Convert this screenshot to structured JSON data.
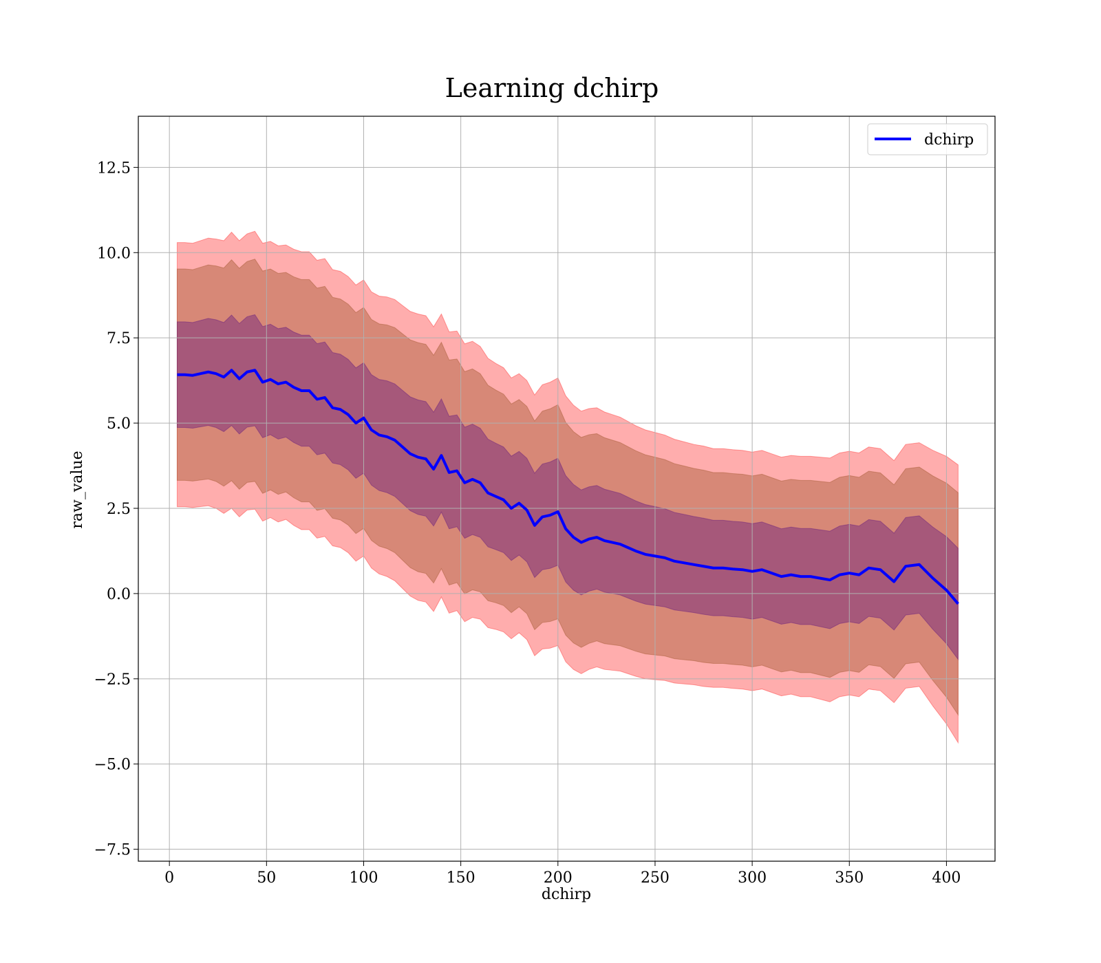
{
  "chart_data": {
    "type": "line",
    "title": "Learning dchirp",
    "xlabel": "dchirp",
    "ylabel": "raw_value",
    "xlim": [
      -16,
      425
    ],
    "ylim": [
      -7.85,
      14.0
    ],
    "grid": true,
    "legend_position": "top-right",
    "xticks": [
      0,
      50,
      100,
      150,
      200,
      250,
      300,
      350,
      400
    ],
    "xtick_labels": [
      "0",
      "50",
      "100",
      "150",
      "200",
      "250",
      "300",
      "350",
      "400"
    ],
    "yticks": [
      -7.5,
      -5.0,
      -2.5,
      0.0,
      2.5,
      5.0,
      7.5,
      10.0,
      12.5
    ],
    "ytick_labels": [
      "−7.5",
      "−5.0",
      "−2.5",
      "0.0",
      "2.5",
      "5.0",
      "7.5",
      "10.0",
      "12.5"
    ],
    "colors": {
      "line": "#0000ff",
      "outer_band": "#ff0000",
      "middle_band": "#8b4513",
      "inner_band": "#4b0082"
    },
    "band_multipliers": [
      1.0,
      2.0,
      2.5
    ],
    "series": [
      {
        "name": "dchirp",
        "x": [
          4,
          8,
          12,
          16,
          20,
          24,
          28,
          32,
          36,
          40,
          44,
          48,
          52,
          56,
          60,
          64,
          68,
          72,
          76,
          80,
          84,
          88,
          92,
          96,
          100,
          104,
          108,
          112,
          116,
          120,
          124,
          128,
          132,
          136,
          140,
          144,
          148,
          152,
          156,
          160,
          164,
          168,
          172,
          176,
          180,
          184,
          188,
          192,
          196,
          200,
          204,
          208,
          212,
          216,
          220,
          224,
          228,
          232,
          236,
          240,
          245,
          250,
          255,
          260,
          265,
          270,
          275,
          280,
          285,
          290,
          295,
          300,
          305,
          310,
          315,
          320,
          325,
          330,
          335,
          340,
          345,
          350,
          355,
          360,
          366,
          373,
          379,
          386,
          393,
          400,
          406
        ],
        "values": [
          6.42,
          6.42,
          6.4,
          6.45,
          6.5,
          6.45,
          6.35,
          6.55,
          6.3,
          6.5,
          6.55,
          6.2,
          6.28,
          6.15,
          6.2,
          6.05,
          5.95,
          5.95,
          5.7,
          5.75,
          5.45,
          5.4,
          5.25,
          5.0,
          5.15,
          4.8,
          4.65,
          4.6,
          4.5,
          4.3,
          4.1,
          4.0,
          3.95,
          3.65,
          4.05,
          3.55,
          3.6,
          3.25,
          3.35,
          3.25,
          2.95,
          2.85,
          2.75,
          2.5,
          2.65,
          2.45,
          2.0,
          2.25,
          2.3,
          2.4,
          1.9,
          1.65,
          1.5,
          1.6,
          1.65,
          1.55,
          1.5,
          1.45,
          1.35,
          1.25,
          1.15,
          1.1,
          1.05,
          0.95,
          0.9,
          0.85,
          0.8,
          0.75,
          0.75,
          0.72,
          0.7,
          0.65,
          0.7,
          0.6,
          0.5,
          0.55,
          0.5,
          0.5,
          0.45,
          0.4,
          0.55,
          0.6,
          0.55,
          0.75,
          0.7,
          0.35,
          0.8,
          0.85,
          0.45,
          0.1,
          -0.3
        ],
        "std": [
          1.55,
          1.55,
          1.55,
          1.56,
          1.57,
          1.58,
          1.6,
          1.62,
          1.62,
          1.62,
          1.63,
          1.63,
          1.62,
          1.62,
          1.61,
          1.62,
          1.63,
          1.63,
          1.63,
          1.63,
          1.62,
          1.62,
          1.62,
          1.62,
          1.62,
          1.62,
          1.63,
          1.64,
          1.65,
          1.66,
          1.67,
          1.68,
          1.68,
          1.67,
          1.66,
          1.65,
          1.64,
          1.63,
          1.62,
          1.6,
          1.58,
          1.56,
          1.55,
          1.53,
          1.52,
          1.52,
          1.53,
          1.55,
          1.56,
          1.57,
          1.56,
          1.55,
          1.54,
          1.53,
          1.52,
          1.51,
          1.5,
          1.49,
          1.48,
          1.47,
          1.46,
          1.45,
          1.44,
          1.43,
          1.42,
          1.41,
          1.41,
          1.4,
          1.4,
          1.4,
          1.4,
          1.4,
          1.4,
          1.4,
          1.4,
          1.4,
          1.41,
          1.41,
          1.42,
          1.43,
          1.43,
          1.43,
          1.43,
          1.42,
          1.42,
          1.42,
          1.43,
          1.43,
          1.5,
          1.57,
          1.63
        ]
      }
    ]
  }
}
